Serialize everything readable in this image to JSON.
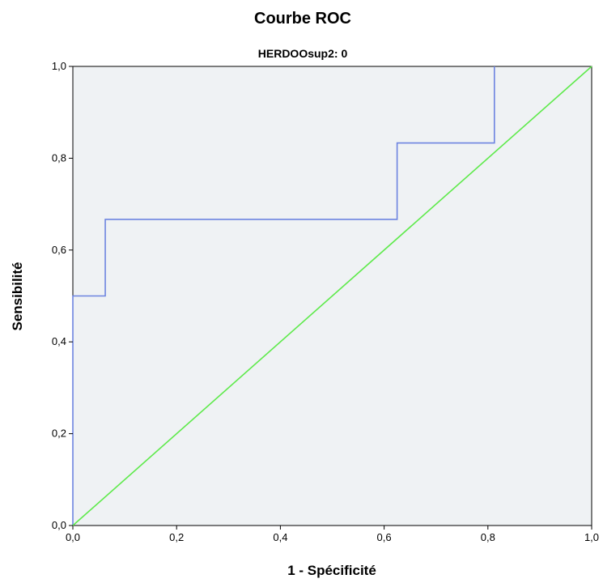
{
  "chart_data": {
    "type": "line",
    "title": "Courbe ROC",
    "subtitle": "HERDOOsup2: 0",
    "xlabel": "1 - Spécificité",
    "ylabel": "Sensibilité",
    "xlim": [
      0,
      1
    ],
    "ylim": [
      0,
      1
    ],
    "x_ticks": [
      "0,0",
      "0,2",
      "0,4",
      "0,6",
      "0,8",
      "1,0"
    ],
    "y_ticks": [
      "0,0",
      "0,2",
      "0,4",
      "0,6",
      "0,8",
      "1,0"
    ],
    "grid": false,
    "background_color": "#eff2f4",
    "series": [
      {
        "color": "#6d84e0",
        "x": [
          0.0,
          0.0,
          0.0625,
          0.0625,
          0.625,
          0.625,
          0.8125,
          0.8125
        ],
        "y": [
          0.0,
          0.5,
          0.5,
          0.6667,
          0.6667,
          0.8333,
          0.8333,
          1.0
        ]
      },
      {
        "color": "#5eea4b",
        "x": [
          0.0,
          1.0
        ],
        "y": [
          0.0,
          1.0
        ]
      }
    ]
  }
}
